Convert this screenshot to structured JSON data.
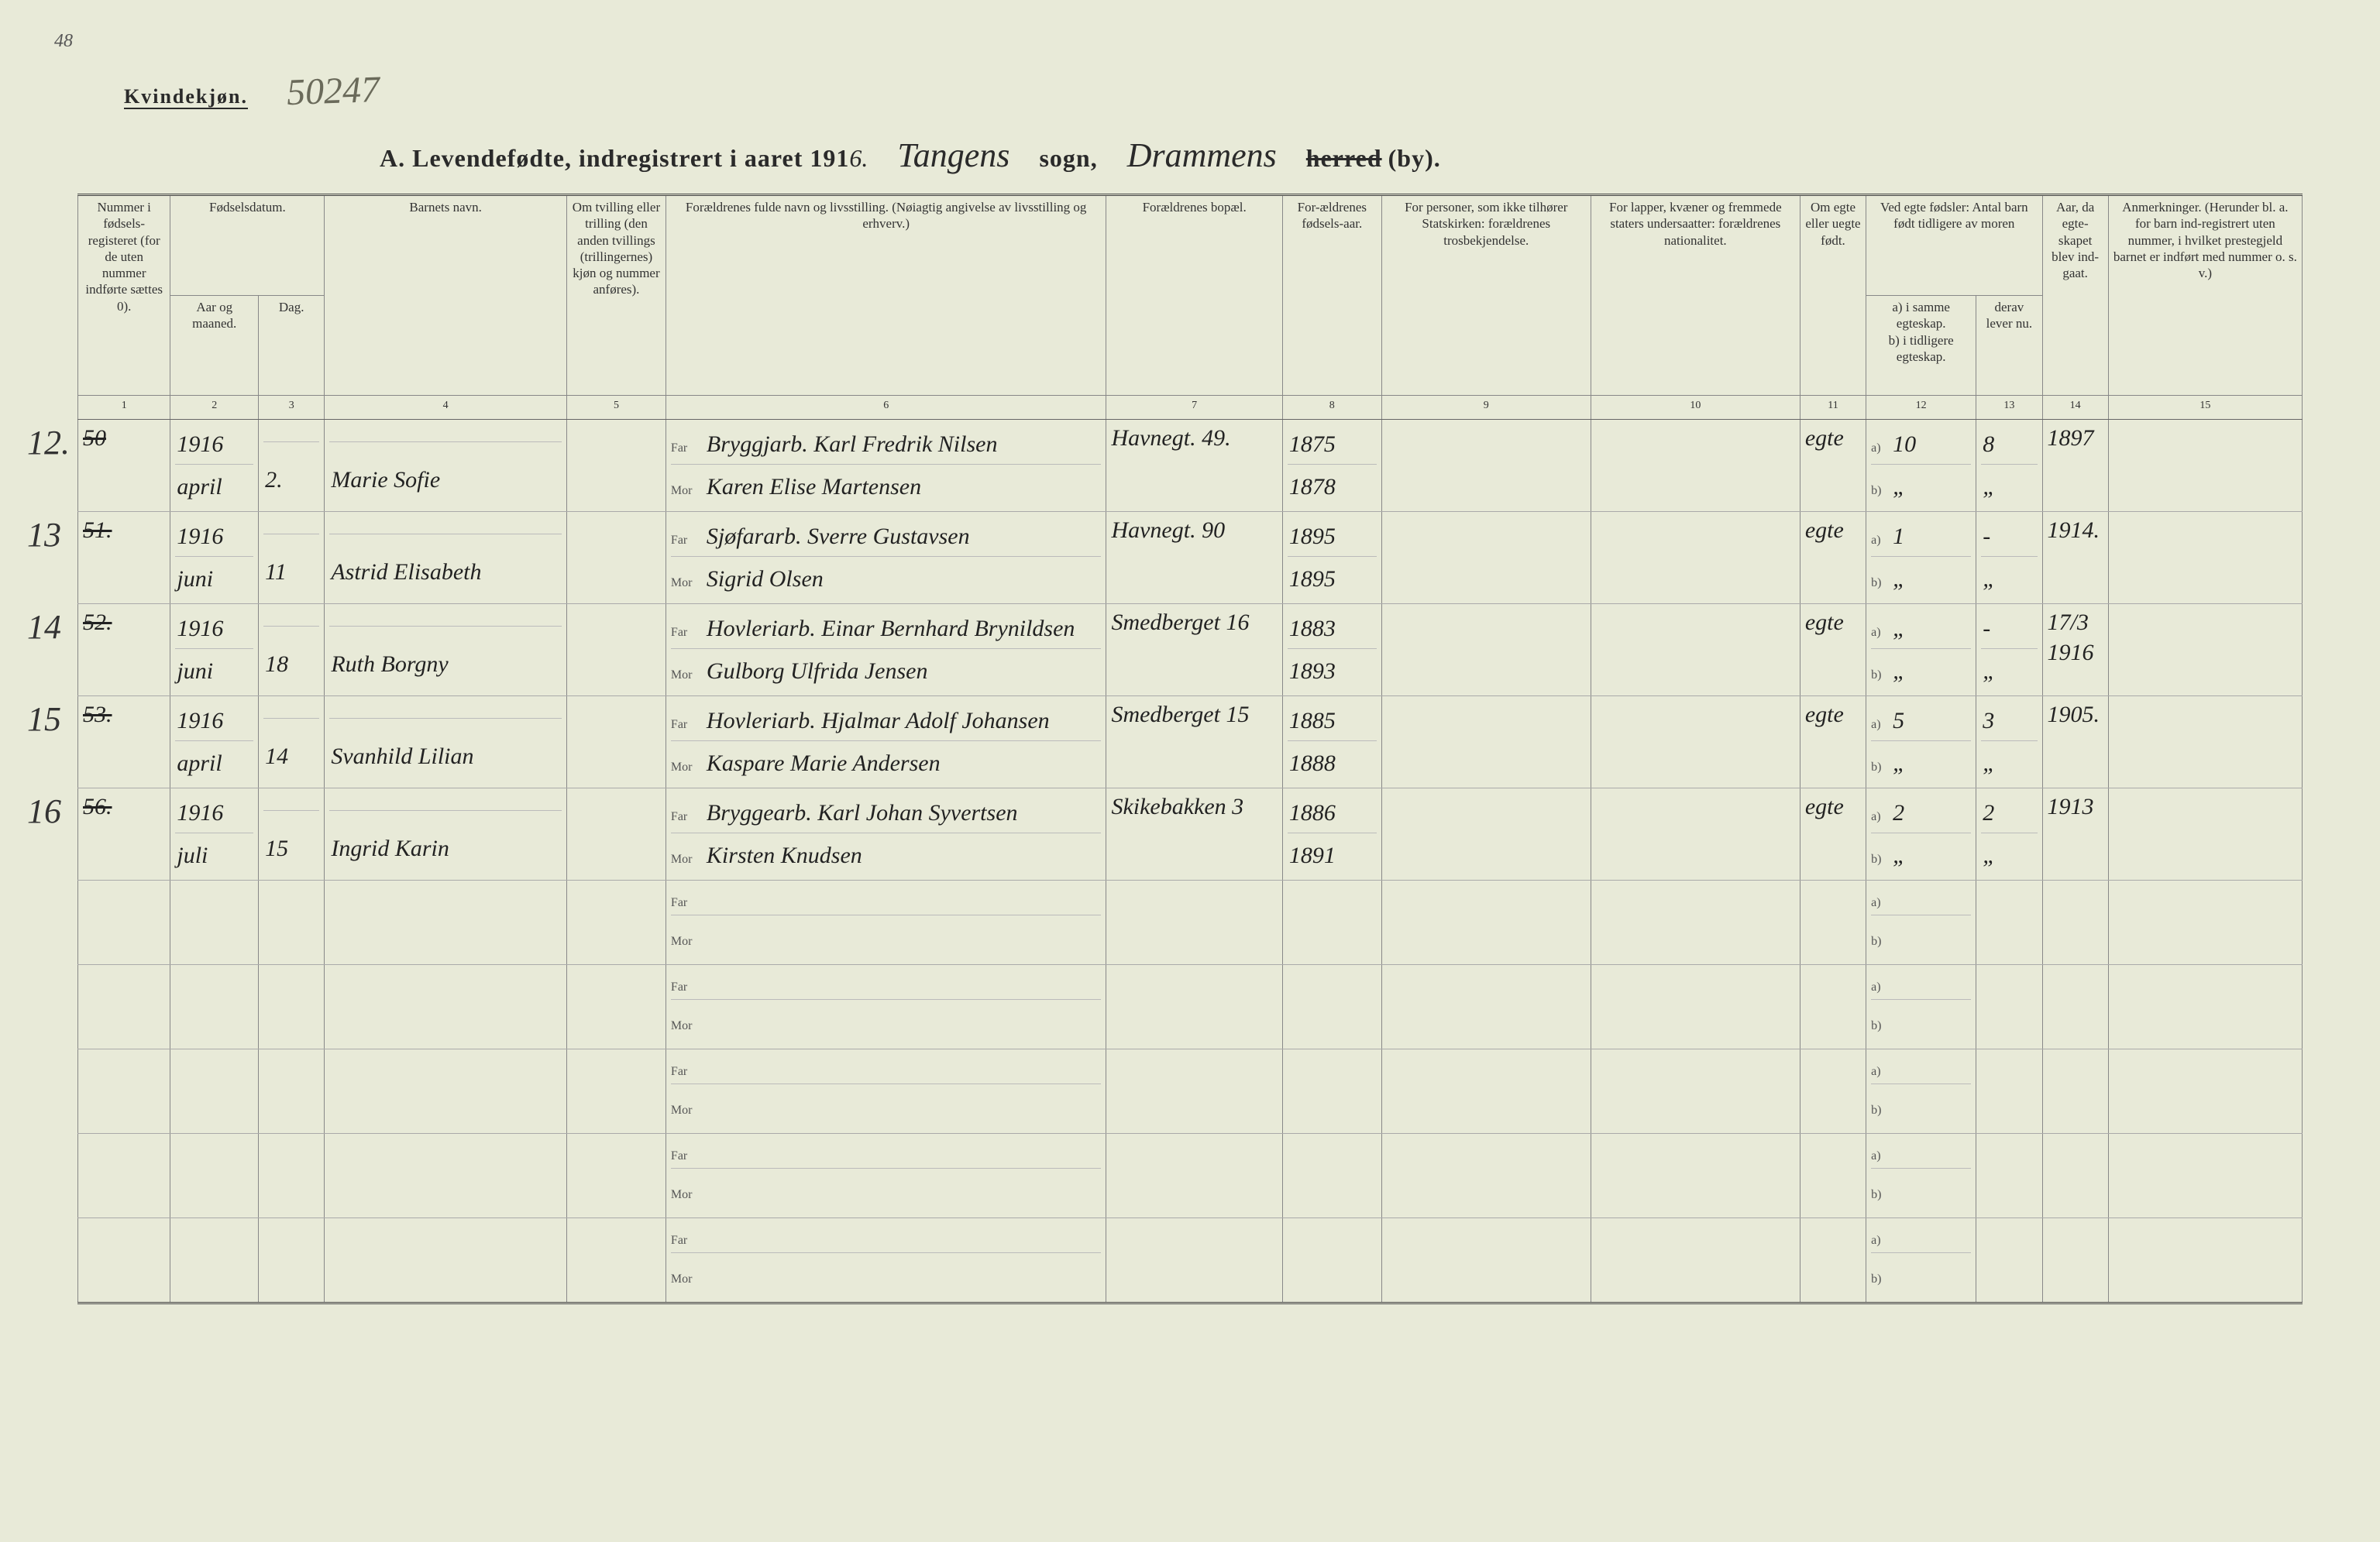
{
  "page_number_top": "48",
  "top_left_label": "Kvindekjøn.",
  "top_stamp": "50247",
  "title": {
    "prefix": "A.  Levendefødte, indregistrert i aaret 191",
    "year_suffix": "6.",
    "sogn_script": "Tangens",
    "sogn_label": "sogn,",
    "herred_script": "Drammens",
    "herred_strike": "herred",
    "herred_suffix": "(by)."
  },
  "colwidths_pct": [
    4.2,
    4.0,
    3.0,
    11.0,
    4.5,
    20.0,
    8.0,
    4.5,
    9.5,
    9.5,
    3.0,
    5.0,
    3.0,
    3.0,
    8.8
  ],
  "headers": {
    "c1": "Nummer i fødsels-registeret (for de uten nummer indførte sættes 0).",
    "c2_top": "Fødselsdatum.",
    "c2a": "Aar og maaned.",
    "c2b": "Dag.",
    "c4": "Barnets navn.",
    "c5": "Om tvilling eller trilling (den anden tvillings (trillingernes) kjøn og nummer anføres).",
    "c6": "Forældrenes fulde navn og livsstilling. (Nøiagtig angivelse av livsstilling og erhverv.)",
    "c7": "Forældrenes bopæl.",
    "c8": "For-ældrenes fødsels-aar.",
    "c9": "For personer, som ikke tilhører Statskirken: forældrenes trosbekjendelse.",
    "c10": "For lapper, kvæner og fremmede staters undersaatter: forældrenes nationalitet.",
    "c11": "Om egte eller uegte født.",
    "c12_top": "Ved egte fødsler: Antal barn født tidligere av moren",
    "c12a": "a) i samme egteskap.",
    "c12b": "b) i tidligere egteskap.",
    "c13_top": "derav lever nu.",
    "c14": "Aar, da egte-skapet blev ind-gaat.",
    "c15": "Anmerkninger. (Herunder bl. a. for barn ind-registrert uten nummer, i hvilket prestegjeld barnet er indført med nummer o. s. v.)"
  },
  "colnums": [
    "1",
    "2",
    "3",
    "4",
    "5",
    "6",
    "7",
    "8",
    "9",
    "10",
    "11",
    "12",
    "13",
    "14",
    "15"
  ],
  "rows": [
    {
      "outer": "12.",
      "reg": "50",
      "reg_struck": true,
      "year": "1916",
      "month": "april",
      "day": "2.",
      "name": "Marie Sofie",
      "far": "Bryggjarb. Karl Fredrik Nilsen",
      "mor": "Karen Elise Martensen",
      "bopel": "Havnegt. 49.",
      "far_aar": "1875",
      "mor_aar": "1878",
      "egte": "egte",
      "a": "10",
      "b": "„",
      "derav_a": "8",
      "derav_b": "„",
      "egteskab_aar": "1897"
    },
    {
      "outer": "13",
      "reg": "51.",
      "reg_struck": true,
      "year": "1916",
      "month": "juni",
      "day": "11",
      "name": "Astrid Elisabeth",
      "far": "Sjøfararb. Sverre Gustavsen",
      "mor": "Sigrid Olsen",
      "bopel": "Havnegt. 90",
      "far_aar": "1895",
      "mor_aar": "1895",
      "egte": "egte",
      "a": "1",
      "b": "„",
      "derav_a": "-",
      "derav_b": "„",
      "egteskab_aar": "1914."
    },
    {
      "outer": "14",
      "reg": "52.",
      "reg_struck": true,
      "year": "1916",
      "month": "juni",
      "day": "18",
      "name": "Ruth Borgny",
      "far": "Hovleriarb. Einar Bernhard Brynildsen",
      "mor": "Gulborg Ulfrida Jensen",
      "bopel": "Smedberget 16",
      "far_aar": "1883",
      "mor_aar": "1893",
      "egte": "egte",
      "a": "„",
      "b": "„",
      "derav_a": "-",
      "derav_b": "„",
      "egteskab_aar": "17/3 1916"
    },
    {
      "outer": "15",
      "reg": "53.",
      "reg_struck": true,
      "year": "1916",
      "month": "april",
      "day": "14",
      "name": "Svanhild Lilian",
      "far": "Hovleriarb. Hjalmar Adolf Johansen",
      "mor": "Kaspare Marie Andersen",
      "bopel": "Smedberget 15",
      "far_aar": "1885",
      "mor_aar": "1888",
      "egte": "egte",
      "a": "5",
      "b": "„",
      "derav_a": "3",
      "derav_b": "„",
      "egteskab_aar": "1905."
    },
    {
      "outer": "16",
      "reg": "56.",
      "reg_struck": true,
      "year": "1916",
      "month": "juli",
      "day": "15",
      "name": "Ingrid Karin",
      "far": "Bryggearb. Karl Johan Syvertsen",
      "mor": "Kirsten Knudsen",
      "bopel": "Skikebakken 3",
      "far_aar": "1886",
      "mor_aar": "1891",
      "egte": "egte",
      "a": "2",
      "b": "„",
      "derav_a": "2",
      "derav_b": "„",
      "egteskab_aar": "1913"
    }
  ],
  "blank_rows": 5,
  "farmor_labels": {
    "far": "Far",
    "mor": "Mor"
  },
  "ab_labels": {
    "a": "a)",
    "b": "b)"
  }
}
